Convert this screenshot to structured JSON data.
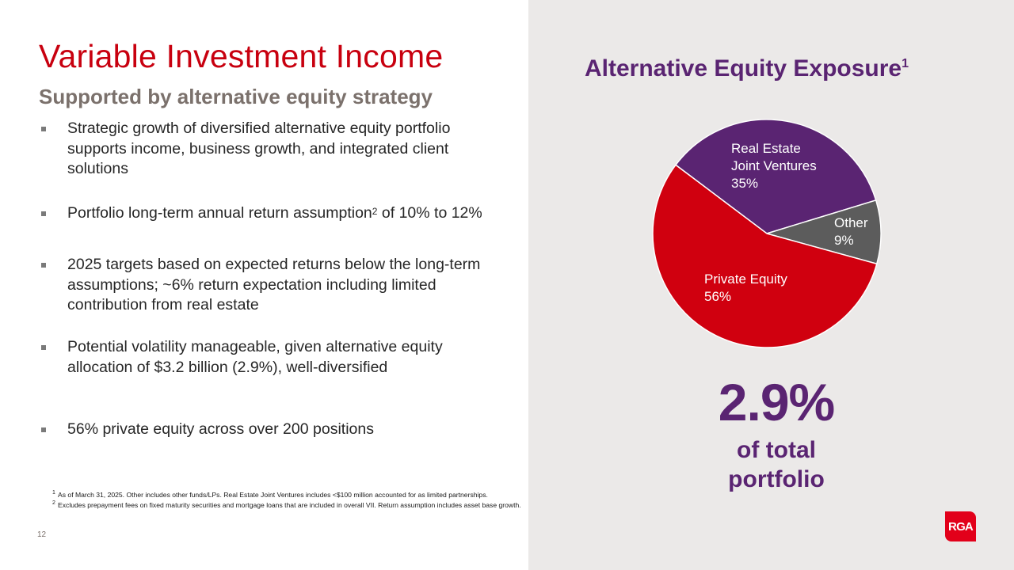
{
  "slide": {
    "title": "Variable Investment Income",
    "subtitle": "Supported by alternative equity strategy",
    "page_number": "12"
  },
  "bullets": [
    {
      "text": "Strategic growth of diversified alternative equity portfolio supports income, business growth, and integrated client solutions"
    },
    {
      "text_before": "Portfolio long-term annual return assumption",
      "sup": "2",
      "text_after": " of 10% to 12%"
    },
    {
      "text": "2025 targets based on expected returns below the long-term assumptions; ~6% return expectation including limited contribution from real estate"
    },
    {
      "text": "Potential volatility manageable, given alternative equity allocation of $3.2 billion (2.9%), well-diversified"
    },
    {
      "text": "56% private equity across over 200 positions"
    }
  ],
  "footnotes": [
    {
      "num": "1",
      "text": "As of March 31, 2025. Other includes other funds/LPs. Real Estate Joint Ventures includes <$100 million accounted for as limited partnerships."
    },
    {
      "num": "2",
      "text": "Excludes prepayment fees on fixed maturity securities and mortgage loans that are included in overall VII. Return assumption includes asset base growth."
    }
  ],
  "chart_panel": {
    "title": "Alternative Equity Exposure",
    "title_sup": "1",
    "big_stat": "2.9%",
    "stat_caption_line1": "of total",
    "stat_caption_line2": "portfolio"
  },
  "colors": {
    "brand_red": "#c8000f",
    "purple": "#5a2472",
    "gray_slice": "#5c5c5c",
    "panel_bg": "#ebe9e8",
    "logo_red": "#e2001a"
  },
  "logo": {
    "text": "RGA"
  },
  "chart_data": {
    "type": "pie",
    "title": "Alternative Equity Exposure",
    "categories": [
      "Real Estate Joint Ventures",
      "Other",
      "Private Equity"
    ],
    "values": [
      35,
      9,
      56
    ],
    "unit": "%",
    "colors": [
      "#5a2472",
      "#5c5c5c",
      "#d0000f"
    ],
    "labels": [
      {
        "line1": "Real Estate",
        "line2": "Joint Ventures",
        "value": "35%"
      },
      {
        "line1": "Other",
        "value": "9%"
      },
      {
        "line1": "Private Equity",
        "value": "56%"
      }
    ],
    "legend": "none (inline labels)",
    "start_angle_deg_clockwise_from_top": -53
  }
}
